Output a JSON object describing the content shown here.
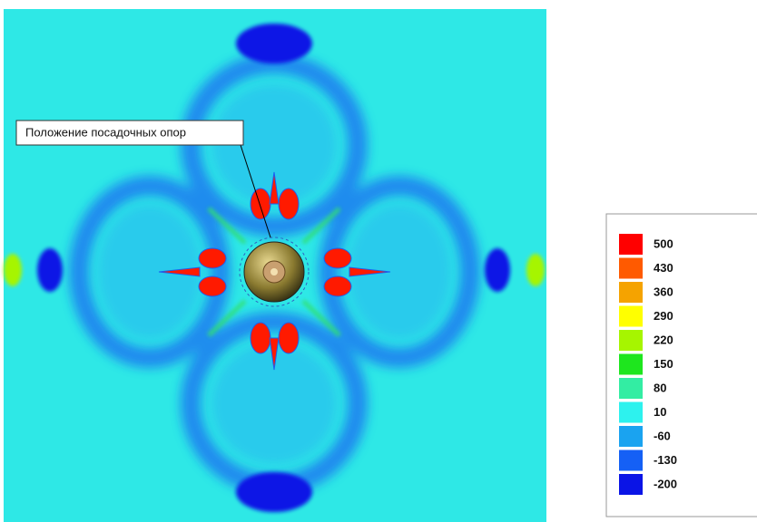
{
  "annotation": "Положение посадочных опор",
  "legend": {
    "items": [
      {
        "label": 500,
        "color": "#ff0000"
      },
      {
        "label": 430,
        "color": "#ff5a00"
      },
      {
        "label": 360,
        "color": "#f5a300"
      },
      {
        "label": 290,
        "color": "#ffff00"
      },
      {
        "label": 220,
        "color": "#a6f500"
      },
      {
        "label": 150,
        "color": "#1ee61e"
      },
      {
        "label": 80,
        "color": "#33eda3"
      },
      {
        "label": 10,
        "color": "#2df2ee"
      },
      {
        "label": -60,
        "color": "#1aa3f0"
      },
      {
        "label": -130,
        "color": "#1560f5"
      },
      {
        "label": -200,
        "color": "#0a14e6"
      }
    ]
  }
}
